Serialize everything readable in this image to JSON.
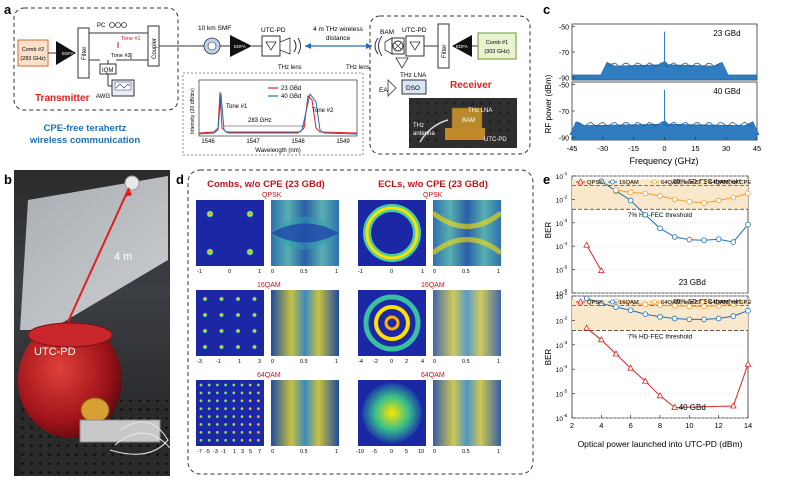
{
  "panel_labels": {
    "a": "a",
    "b": "b",
    "c": "c",
    "d": "d",
    "e": "e"
  },
  "panel_a": {
    "comb2": "Comb #2",
    "comb2_freq": "(283 GHz)",
    "edfa": "EDFA",
    "filter": "Filter",
    "pc": "PC",
    "tone1": "Tone #1",
    "tone2": "Tone #2",
    "iqm": "IQM",
    "awg": "AWG",
    "coupler": "Coupler",
    "transmitter": "Transmitter",
    "cpe_free_line1": "CPE-free terahertz",
    "cpe_free_line2": "wireless communication",
    "smf": "10 km SMF",
    "utcpd": "UTC-PD",
    "thz_lens": "THz lens",
    "wireless_line1": "4 m THz wireless",
    "wireless_line2": "distance",
    "bam": "BAM",
    "thz_lna": "THz LNA",
    "ea": "EA",
    "dso": "DSO",
    "comb1": "Comb #1",
    "comb1_freq": "(303 GHz)",
    "receiver": "Receiver",
    "photo_utcpd": "UTC-PD",
    "photo_thz_antenna_1": "THz",
    "photo_thz_antenna_2": "antenna",
    "photo_bam": "BAM",
    "photo_thz_lna": "THz LNA",
    "inset_ylabel": "Intensity (20 dB/div)",
    "inset_xlabel": "Wavelength (nm)",
    "inset_xticks": [
      "1546",
      "1547",
      "1548",
      "1549"
    ],
    "inset_legend_23": "23 GBd",
    "inset_legend_40": "40 GBd",
    "inset_tone1": "Tone #1",
    "inset_tone2": "Tone #2",
    "inset_spacing": "283 GHz"
  },
  "panel_b": {
    "distance": "4 m",
    "utcpd": "UTC-PD"
  },
  "panel_d": {
    "combs_title": "Combs, w/o CPE (23 GBd)",
    "ecls_title": "ECLs, w/o CPE (23 GBd)",
    "qpsk": "QPSK",
    "qam16": "16QAM",
    "qam64": "64QAM",
    "eye_ticks": [
      "0",
      "0.5",
      "1"
    ],
    "row1_const_ticks": [
      "-1",
      "0",
      "1"
    ],
    "row2_const_ticks": [
      "-3",
      "-1",
      "1",
      "3"
    ],
    "row3_const_ticks": [
      "-7",
      "-5",
      "-3",
      "-1",
      "1",
      "3",
      "5",
      "7"
    ],
    "ecl_row1_ticks": [
      "-1",
      "0",
      "1"
    ],
    "ecl_row2_ticks": [
      "-4",
      "-2",
      "0",
      "2",
      "4"
    ],
    "ecl_row3_ticks": [
      "-10",
      "-5",
      "0",
      "5",
      "10"
    ]
  },
  "panel_c": {
    "chart_data": {
      "type": "area",
      "title": "",
      "xlabel": "Frequency (GHz)",
      "ylabel": "RF power (dBm)",
      "xlim": [
        -45,
        45
      ],
      "xticks": [
        "-45",
        "-30",
        "-15",
        "0",
        "15",
        "30",
        "45"
      ],
      "subplots": [
        {
          "label": "23 GBd",
          "ylim": [
            -92,
            -48
          ],
          "yticks": [
            "-50",
            "-70",
            "-90"
          ],
          "half_width_ghz": 28,
          "noise_floor_dbm": -88,
          "signal_top_dbm": -80
        },
        {
          "label": "40 GBd",
          "ylim": [
            -92,
            -48
          ],
          "yticks": [
            "-50",
            "-70",
            "-90"
          ],
          "half_width_ghz": 43,
          "noise_floor_dbm": -88,
          "signal_top_dbm": -80
        }
      ]
    }
  },
  "panel_e": {
    "chart_data": {
      "type": "line",
      "xlabel": "Optical power launched into UTC-PD (dBm)",
      "ylabel": "BER",
      "xlim": [
        2,
        14
      ],
      "xticks": [
        "2",
        "4",
        "6",
        "8",
        "10",
        "12",
        "14"
      ],
      "ylim_log": [
        -6,
        -1
      ],
      "ytick_labels": [
        "10",
        "10",
        "10",
        "10",
        "10",
        "10"
      ],
      "ytick_exps": [
        "-1",
        "-2",
        "-3",
        "-4",
        "-5",
        "-6"
      ],
      "legend": [
        "QPSK",
        "16QAM",
        "64QAM, w/o CPE",
        "64QAM, w/ CPE"
      ],
      "thresholds": [
        {
          "label": "25% SD-FEC threshold",
          "ber": 0.04
        },
        {
          "label": "7% HD-FEC threshold",
          "ber": 0.0038
        }
      ],
      "plots": [
        {
          "label": "23 GBd",
          "series": [
            {
              "name": "QPSK",
              "color": "#d62728",
              "x": [
                3,
                4
              ],
              "y": [
                0.00011,
                9e-06
              ]
            },
            {
              "name": "16QAM",
              "color": "#1f6fb5",
              "x": [
                4,
                5,
                6,
                7,
                8,
                9,
                10,
                11,
                12,
                13,
                14
              ],
              "y": [
                0.06,
                0.023,
                0.009,
                0.0022,
                0.00058,
                0.00025,
                0.00019,
                0.00018,
                0.0002,
                0.00015,
                0.00085
              ]
            },
            {
              "name": "64QAM, w/o CPE",
              "color": "#f0a030",
              "x": [
                5,
                6,
                7,
                8,
                9,
                10,
                11,
                12,
                13,
                14
              ],
              "y": [
                0.025,
                0.02,
                0.018,
                0.014,
                0.01,
                0.008,
                0.007,
                0.009,
                0.012,
                0.018
              ]
            }
          ]
        },
        {
          "label": "40 GBd",
          "series": [
            {
              "name": "QPSK",
              "color": "#d62728",
              "x": [
                3,
                4,
                5,
                6,
                7,
                8,
                9,
                13,
                14
              ],
              "y": [
                0.0048,
                0.0016,
                0.00042,
                0.00011,
                3.2e-05,
                8.1e-06,
                2.7e-06,
                3.1e-06,
                0.00016
              ]
            },
            {
              "name": "16QAM",
              "color": "#1f6fb5",
              "x": [
                3,
                4,
                5,
                6,
                7,
                8,
                9,
                10,
                11,
                12,
                13,
                14
              ],
              "y": [
                0.08,
                0.05,
                0.035,
                0.026,
                0.018,
                0.014,
                0.012,
                0.011,
                0.011,
                0.012,
                0.015,
                0.025
              ]
            },
            {
              "name": "64QAM, w/o CPE",
              "color": "#f0a030",
              "x": [
                5,
                6,
                7,
                8,
                9,
                10,
                11,
                12,
                13,
                14
              ],
              "y": [
                0.06,
                0.05,
                0.045,
                0.042,
                0.04,
                0.038,
                0.038,
                0.04,
                0.045,
                0.06
              ]
            }
          ]
        }
      ]
    }
  }
}
